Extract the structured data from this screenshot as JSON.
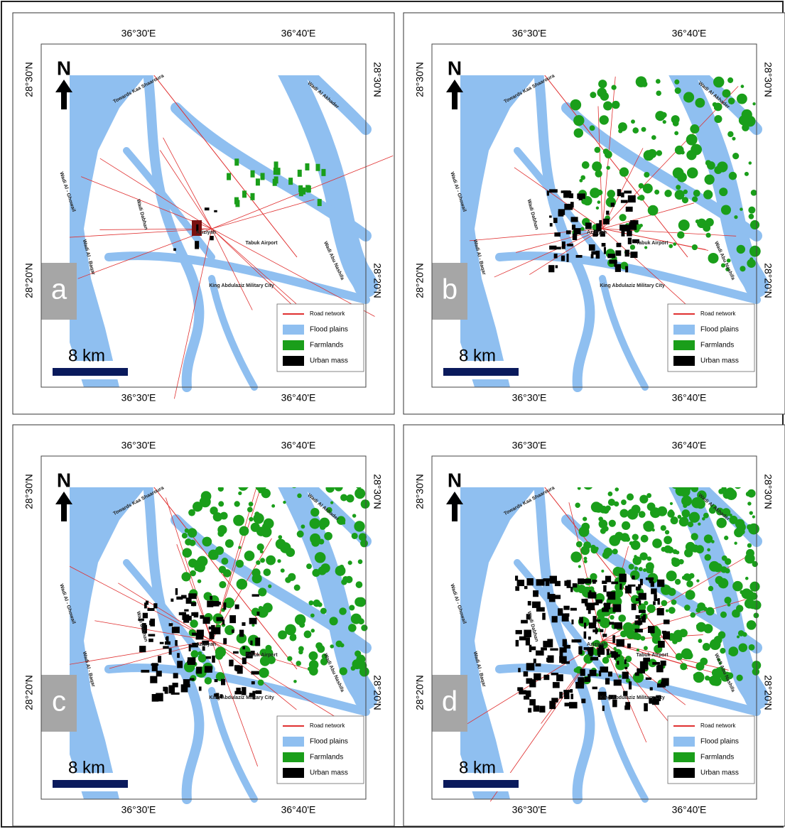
{
  "panels": [
    {
      "letter": "a",
      "north": "N",
      "scale": "8 km",
      "top_labels": [
        "36°30'E",
        "36°40'E"
      ],
      "bottom_labels": [
        "36°30'E",
        "36°40'E"
      ],
      "left_labels": [
        "28°30'N",
        "28°20'N"
      ],
      "right_labels": [
        "28°30'N",
        "28°20'N"
      ],
      "places": [
        "Towards Kaa Shaaroura",
        "Wadi Al Akhader",
        "Wadi Al - Ghowail",
        "Wadi Dabhan",
        "Wadi Al - Baqar",
        "Aziziyah",
        "Tabuk Airport",
        "King Abdulaziz Military City",
        "Wadi Abu Nashifa"
      ],
      "legend": [
        "Road network",
        "Flood plains",
        "Farmlands",
        "Urban mass"
      ]
    },
    {
      "letter": "b",
      "north": "N",
      "scale": "8 km",
      "top_labels": [
        "36°30'E",
        "36°40'E"
      ],
      "bottom_labels": [
        "36°30'E",
        "36°40'E"
      ],
      "left_labels": [
        "28°30'N",
        "28°20'N"
      ],
      "right_labels": [
        "28°30'N",
        "28°20'N"
      ],
      "places": [
        "Towards Kaa Shaaroura",
        "Wadi Al Akhader",
        "Wadi Al - Ghowail",
        "Wadi Dabhan",
        "Wadi Al - Baqar",
        "Aziziyah",
        "Tabuk Airport",
        "King Abdulaziz Military City",
        "Wadi Abu Nashifa"
      ],
      "legend": [
        "Road network",
        "Flood plains",
        "Farmlands",
        "Urban mass"
      ]
    },
    {
      "letter": "c",
      "north": "N",
      "scale": "8 km",
      "top_labels": [
        "36°30'E",
        "36°40'E"
      ],
      "bottom_labels": [
        "36°30'E",
        "36°40'E"
      ],
      "left_labels": [
        "28°30'N",
        "28°20'N"
      ],
      "right_labels": [
        "28°30'N",
        "28°20'N"
      ],
      "places": [
        "Towards Kaa Shaaroura",
        "Wadi Al Akhader",
        "Wadi Al - Ghowail",
        "Wadi Dabhan",
        "Wadi Al - Baqar",
        "Aziziyah",
        "Tabuk Airport",
        "King Abdulaziz Military City",
        "Wadi Abu Nashifa"
      ],
      "legend": [
        "Road network",
        "Flood plains",
        "Farmlands",
        "Urban mass"
      ]
    },
    {
      "letter": "d",
      "north": "N",
      "scale": "8 km",
      "top_labels": [
        "36°30'E",
        "36°40'E"
      ],
      "bottom_labels": [
        "36°30'E",
        "36°40'E"
      ],
      "left_labels": [
        "28°30'N",
        "28°20'N"
      ],
      "right_labels": [
        "28°30'N",
        "28°20'N"
      ],
      "places": [
        "Towards Kaa Shaaroura",
        "Wadi Al Akhader",
        "Wadi Al - Ghowail",
        "Wadi Dabhan",
        "Wadi Al - Baqar",
        "Aziziyah",
        "Tabuk Airport",
        "King Abdulaziz Military City",
        "Wadi Abu Nashifa"
      ],
      "legend": [
        "Road network",
        "Flood plains",
        "Farmlands",
        "Urban mass"
      ]
    }
  ]
}
